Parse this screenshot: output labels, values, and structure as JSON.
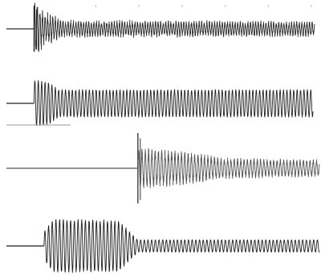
{
  "chart_data": [
    {
      "type": "line",
      "title": "",
      "xlabel": "",
      "ylabel": "",
      "grid": false,
      "legend": "none",
      "x_range": [
        0,
        1
      ],
      "y_range": [
        -1,
        1
      ],
      "color": "#2a2a2a",
      "baseline_until": 0.09,
      "onset": 0.09,
      "spike_amplitude": 0.95,
      "series": [
        {
          "values_description_free": true,
          "envelope": [
            {
              "x": 0.09,
              "amp": 0.95
            },
            {
              "x": 0.12,
              "amp": 0.55
            },
            {
              "x": 0.18,
              "amp": 0.25
            },
            {
              "x": 1.0,
              "amp": 0.22
            }
          ],
          "cycles": 120,
          "jitter": 0.5
        }
      ],
      "top_tick_marks_x": [
        0.29,
        0.43,
        0.57,
        0.71,
        0.85,
        0.99
      ]
    },
    {
      "type": "line",
      "title": "",
      "xlabel": "",
      "ylabel": "",
      "grid": false,
      "legend": "none",
      "x_range": [
        0,
        1
      ],
      "y_range": [
        -1,
        1
      ],
      "color": "#1f1f1f",
      "onset": 0.09,
      "underline_until": 0.21,
      "series": [
        {
          "envelope": [
            {
              "x": 0.09,
              "amp": 0.95
            },
            {
              "x": 0.14,
              "amp": 0.85
            },
            {
              "x": 0.17,
              "amp": 0.55
            },
            {
              "x": 1.0,
              "amp": 0.55
            }
          ],
          "cycles": 90,
          "jitter": 0.05
        }
      ]
    },
    {
      "type": "line",
      "title": "",
      "xlabel": "",
      "ylabel": "",
      "grid": false,
      "legend": "none",
      "x_range": [
        0,
        1
      ],
      "y_range": [
        -1,
        1
      ],
      "color": "#555555",
      "onset": 0.42,
      "spike_amplitude": 1.0,
      "series": [
        {
          "envelope": [
            {
              "x": 0.42,
              "amp": 0.45
            },
            {
              "x": 0.58,
              "amp": 0.35
            },
            {
              "x": 0.7,
              "amp": 0.22
            },
            {
              "x": 1.0,
              "amp": 0.18
            }
          ],
          "cycles": 95,
          "jitter": 0.35
        }
      ]
    },
    {
      "type": "line",
      "title": "",
      "xlabel": "",
      "ylabel": "",
      "grid": false,
      "legend": "none",
      "x_range": [
        0,
        1
      ],
      "y_range": [
        -1,
        1
      ],
      "color": "#1c1c1c",
      "onset": 0.12,
      "series": [
        {
          "envelope": [
            {
              "x": 0.12,
              "amp": 0.5
            },
            {
              "x": 0.15,
              "amp": 0.95
            },
            {
              "x": 0.36,
              "amp": 0.9
            },
            {
              "x": 0.39,
              "amp": 0.55
            },
            {
              "x": 0.42,
              "amp": 0.22
            },
            {
              "x": 1.0,
              "amp": 0.22
            }
          ],
          "cycles": 85,
          "jitter": 0.05
        }
      ]
    }
  ]
}
